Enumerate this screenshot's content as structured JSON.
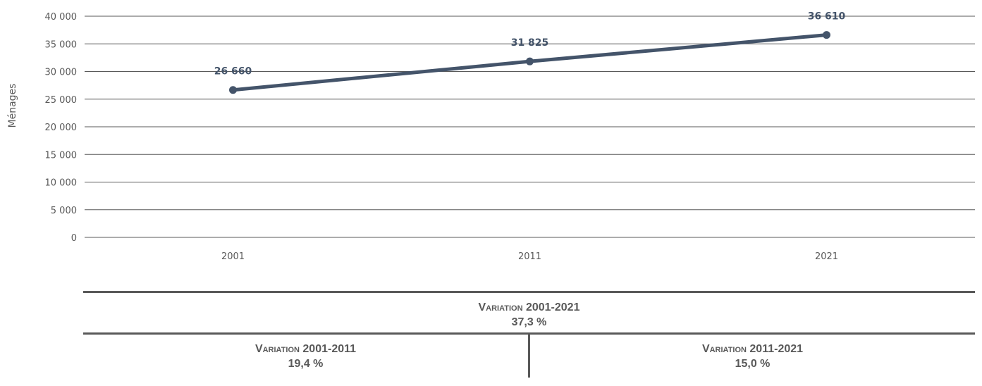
{
  "chart_data": {
    "type": "line",
    "categories": [
      "2001",
      "2011",
      "2021"
    ],
    "series": [
      {
        "values": [
          26660,
          31825,
          36610
        ],
        "data_labels": [
          "26 660",
          "31 825",
          "36 610"
        ],
        "color": "#44546a"
      }
    ],
    "ylabel": "Ménages",
    "xlabel": "",
    "ylim": [
      0,
      40000
    ],
    "yticks": [
      0,
      5000,
      10000,
      15000,
      20000,
      25000,
      30000,
      35000,
      40000
    ],
    "ytick_labels": [
      "0",
      "5 000",
      "10 000",
      "15 000",
      "20 000",
      "25 000",
      "30 000",
      "35 000",
      "40 000"
    ],
    "grid": true,
    "legend": "none",
    "gridline_color": "#595959"
  },
  "variation": {
    "total": {
      "label": "Variation 2001-2021",
      "value": "37,3 %"
    },
    "first": {
      "label": "Variation 2001-2011",
      "value": "19,4 %"
    },
    "second": {
      "label": "Variation 2011-2021",
      "value": "15,0 %"
    }
  }
}
